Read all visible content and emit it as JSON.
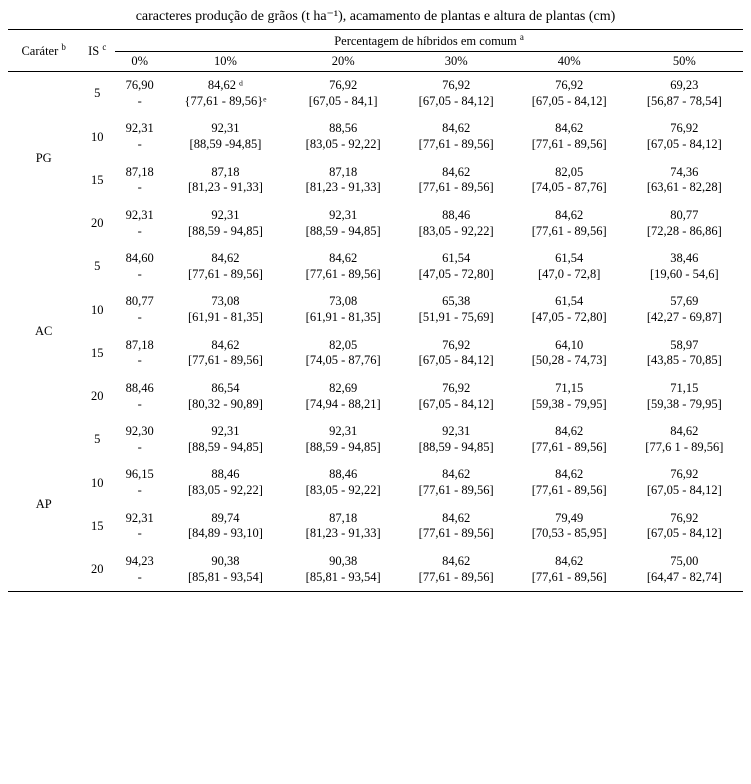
{
  "caption": "caracteres produção de grãos (t ha⁻¹), acamamento de plantas e altura de plantas (cm)",
  "headers": {
    "trait": "Caráter",
    "trait_sup": "b",
    "is": "IS",
    "is_sup": "c",
    "pct_label": "Percentagem de híbridos em comum",
    "pct_sup": "a",
    "cols": [
      "0%",
      "10%",
      "20%",
      "30%",
      "40%",
      "50%"
    ]
  },
  "groups": [
    {
      "label": "PG",
      "rows": [
        {
          "is": "5",
          "cells": [
            {
              "v": "76,90",
              "ci": "-"
            },
            {
              "v": "84,62 ᵈ",
              "ci": "{77,61 - 89,56}ᵉ"
            },
            {
              "v": "76,92",
              "ci": "[67,05 - 84,1]"
            },
            {
              "v": "76,92",
              "ci": "[67,05 - 84,12]"
            },
            {
              "v": "76,92",
              "ci": "[67,05 - 84,12]"
            },
            {
              "v": "69,23",
              "ci": "[56,87 - 78,54]"
            }
          ]
        },
        {
          "is": "10",
          "cells": [
            {
              "v": "92,31",
              "ci": "-"
            },
            {
              "v": "92,31",
              "ci": "[88,59 -94,85]"
            },
            {
              "v": "88,56",
              "ci": "[83,05 - 92,22]"
            },
            {
              "v": "84,62",
              "ci": "[77,61 - 89,56]"
            },
            {
              "v": "84,62",
              "ci": "[77,61 - 89,56]"
            },
            {
              "v": "76,92",
              "ci": "[67,05 - 84,12]"
            }
          ]
        },
        {
          "is": "15",
          "cells": [
            {
              "v": "87,18",
              "ci": "-"
            },
            {
              "v": "87,18",
              "ci": "[81,23 - 91,33]"
            },
            {
              "v": "87,18",
              "ci": "[81,23 - 91,33]"
            },
            {
              "v": "84,62",
              "ci": "[77,61 - 89,56]"
            },
            {
              "v": "82,05",
              "ci": "[74,05 - 87,76]"
            },
            {
              "v": "74,36",
              "ci": "[63,61 - 82,28]"
            }
          ]
        },
        {
          "is": "20",
          "cells": [
            {
              "v": "92,31",
              "ci": "-"
            },
            {
              "v": "92,31",
              "ci": "[88,59 - 94,85]"
            },
            {
              "v": "92,31",
              "ci": "[88,59 - 94,85]"
            },
            {
              "v": "88,46",
              "ci": "[83,05 - 92,22]"
            },
            {
              "v": "84,62",
              "ci": "[77,61 - 89,56]"
            },
            {
              "v": "80,77",
              "ci": "[72,28 - 86,86]"
            }
          ]
        }
      ]
    },
    {
      "label": "AC",
      "rows": [
        {
          "is": "5",
          "cells": [
            {
              "v": "84,60",
              "ci": "-"
            },
            {
              "v": "84,62",
              "ci": "[77,61 - 89,56]"
            },
            {
              "v": "84,62",
              "ci": "[77,61 - 89,56]"
            },
            {
              "v": "61,54",
              "ci": "[47,05 - 72,80]"
            },
            {
              "v": "61,54",
              "ci": "[47,0 - 72,8]"
            },
            {
              "v": "38,46",
              "ci": "[19,60 - 54,6]"
            }
          ]
        },
        {
          "is": "10",
          "cells": [
            {
              "v": "80,77",
              "ci": "-"
            },
            {
              "v": "73,08",
              "ci": "[61,91 - 81,35]"
            },
            {
              "v": "73,08",
              "ci": "[61,91 - 81,35]"
            },
            {
              "v": "65,38",
              "ci": "[51,91 - 75,69]"
            },
            {
              "v": "61,54",
              "ci": "[47,05 - 72,80]"
            },
            {
              "v": "57,69",
              "ci": "[42,27 - 69,87]"
            }
          ]
        },
        {
          "is": "15",
          "cells": [
            {
              "v": "87,18",
              "ci": "-"
            },
            {
              "v": "84,62",
              "ci": "[77,61 - 89,56]"
            },
            {
              "v": "82,05",
              "ci": "[74,05 - 87,76]"
            },
            {
              "v": "76,92",
              "ci": "[67,05 - 84,12]"
            },
            {
              "v": "64,10",
              "ci": "[50,28 - 74,73]"
            },
            {
              "v": "58,97",
              "ci": "[43,85 - 70,85]"
            }
          ]
        },
        {
          "is": "20",
          "cells": [
            {
              "v": "88,46",
              "ci": "-"
            },
            {
              "v": "86,54",
              "ci": "[80,32 - 90,89]"
            },
            {
              "v": "82,69",
              "ci": "[74,94 - 88,21]"
            },
            {
              "v": "76,92",
              "ci": "[67,05 - 84,12]"
            },
            {
              "v": "71,15",
              "ci": "[59,38 - 79,95]"
            },
            {
              "v": "71,15",
              "ci": "[59,38 - 79,95]"
            }
          ]
        }
      ]
    },
    {
      "label": "AP",
      "rows": [
        {
          "is": "5",
          "cells": [
            {
              "v": "92,30",
              "ci": "-"
            },
            {
              "v": "92,31",
              "ci": "[88,59 - 94,85]"
            },
            {
              "v": "92,31",
              "ci": "[88,59 - 94,85]"
            },
            {
              "v": "92,31",
              "ci": "[88,59 - 94,85]"
            },
            {
              "v": "84,62",
              "ci": "[77,61 - 89,56]"
            },
            {
              "v": "84,62",
              "ci": "[77,6 1 - 89,56]"
            }
          ]
        },
        {
          "is": "10",
          "cells": [
            {
              "v": "96,15",
              "ci": "-"
            },
            {
              "v": "88,46",
              "ci": "[83,05 - 92,22]"
            },
            {
              "v": "88,46",
              "ci": "[83,05 - 92,22]"
            },
            {
              "v": "84,62",
              "ci": "[77,61 - 89,56]"
            },
            {
              "v": "84,62",
              "ci": "[77,61 - 89,56]"
            },
            {
              "v": "76,92",
              "ci": "[67,05 - 84,12]"
            }
          ]
        },
        {
          "is": "15",
          "cells": [
            {
              "v": "92,31",
              "ci": "-"
            },
            {
              "v": "89,74",
              "ci": "[84,89 - 93,10]"
            },
            {
              "v": "87,18",
              "ci": "[81,23 - 91,33]"
            },
            {
              "v": "84,62",
              "ci": "[77,61 - 89,56]"
            },
            {
              "v": "79,49",
              "ci": "[70,53 - 85,95]"
            },
            {
              "v": "76,92",
              "ci": "[67,05 - 84,12]"
            }
          ]
        },
        {
          "is": "20",
          "cells": [
            {
              "v": "94,23",
              "ci": "-"
            },
            {
              "v": "90,38",
              "ci": "[85,81 - 93,54]"
            },
            {
              "v": "90,38",
              "ci": "[85,81 - 93,54]"
            },
            {
              "v": "84,62",
              "ci": "[77,61 - 89,56]"
            },
            {
              "v": "84,62",
              "ci": "[77,61 - 89,56]"
            },
            {
              "v": "75,00",
              "ci": "[64,47 - 82,74]"
            }
          ]
        }
      ]
    }
  ]
}
